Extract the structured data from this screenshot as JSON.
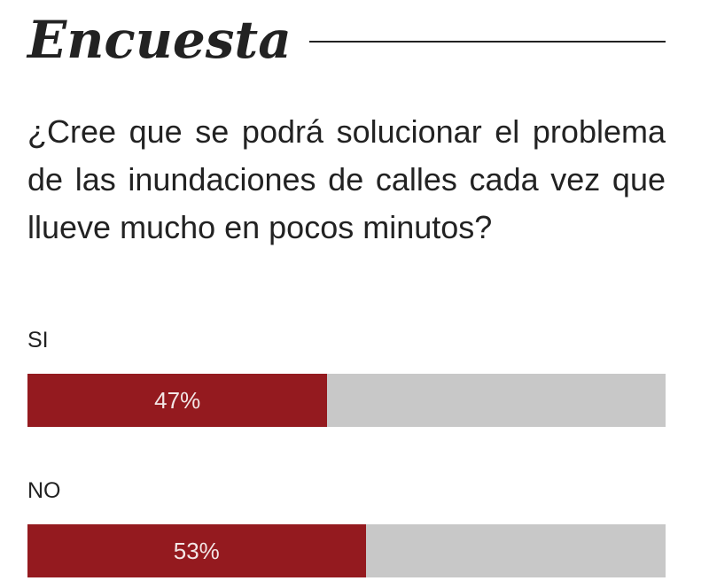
{
  "poll": {
    "title": "Encuesta",
    "question": "¿Cree que se podrá solucionar el problema de las inundaciones de calles cada vez que llueve mucho en pocos minutos?",
    "options": [
      {
        "label": "SI",
        "percent": 47,
        "percent_label": "47%"
      },
      {
        "label": "NO",
        "percent": 53,
        "percent_label": "53%"
      }
    ]
  },
  "colors": {
    "bar_fill": "#941a1f",
    "bar_track": "#c8c8c8",
    "text": "#222222"
  }
}
